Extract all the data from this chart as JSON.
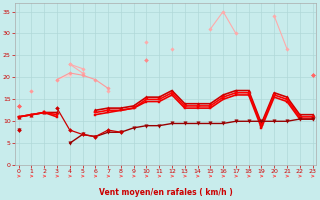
{
  "xlabel": "Vent moyen/en rafales ( km/h )",
  "bg_color": "#c8ecec",
  "grid_color": "#b0d8d8",
  "xlim": [
    -0.3,
    23.3
  ],
  "ylim": [
    0,
    37
  ],
  "yticks": [
    0,
    5,
    10,
    15,
    20,
    25,
    30,
    35
  ],
  "x_ticks": [
    0,
    1,
    2,
    3,
    4,
    5,
    6,
    7,
    8,
    9,
    10,
    11,
    12,
    13,
    14,
    15,
    16,
    17,
    18,
    19,
    20,
    21,
    22,
    23
  ],
  "series": [
    {
      "color": "#ffaaaa",
      "linewidth": 0.8,
      "marker": "D",
      "markersize": 1.8,
      "data": [
        13.5,
        null,
        null,
        null,
        23,
        21,
        null,
        17,
        null,
        null,
        28,
        null,
        26.5,
        null,
        null,
        31,
        35,
        30,
        null,
        null,
        34,
        26.5,
        null,
        20.5
      ]
    },
    {
      "color": "#ffbbbb",
      "linewidth": 0.8,
      "marker": "D",
      "markersize": 1.8,
      "data": [
        13.5,
        null,
        null,
        null,
        null,
        null,
        null,
        null,
        null,
        null,
        null,
        null,
        null,
        null,
        null,
        null,
        null,
        null,
        null,
        null,
        null,
        null,
        null,
        20.5
      ]
    },
    {
      "color": "#ffcccc",
      "linewidth": 0.8,
      "marker": "D",
      "markersize": 1.8,
      "data": [
        null,
        17,
        null,
        19.5,
        20.5,
        null,
        null,
        null,
        null,
        null,
        null,
        null,
        null,
        null,
        null,
        null,
        null,
        null,
        null,
        null,
        null,
        null,
        null,
        null
      ]
    },
    {
      "color": "#ff9999",
      "linewidth": 0.8,
      "marker": "D",
      "markersize": 1.8,
      "data": [
        null,
        17,
        null,
        19.5,
        21,
        20.5,
        19.5,
        17.5,
        null,
        null,
        null,
        null,
        null,
        null,
        null,
        null,
        null,
        null,
        null,
        null,
        null,
        null,
        null,
        null
      ]
    },
    {
      "color": "#ffaaaa",
      "linewidth": 0.8,
      "marker": "D",
      "markersize": 1.8,
      "data": [
        null,
        null,
        null,
        null,
        23,
        22,
        null,
        null,
        null,
        null,
        null,
        null,
        null,
        null,
        null,
        null,
        null,
        null,
        null,
        null,
        null,
        null,
        null,
        null
      ]
    },
    {
      "color": "#ff8888",
      "linewidth": 0.9,
      "marker": "D",
      "markersize": 2.0,
      "data": [
        13.5,
        null,
        null,
        null,
        null,
        null,
        null,
        null,
        null,
        null,
        24,
        null,
        null,
        null,
        null,
        null,
        null,
        null,
        null,
        null,
        null,
        null,
        null,
        20.5
      ]
    },
    {
      "color": "#ff6666",
      "linewidth": 0.9,
      "marker": "D",
      "markersize": 2.0,
      "data": [
        13.5,
        null,
        null,
        null,
        null,
        null,
        null,
        null,
        null,
        null,
        null,
        null,
        null,
        null,
        null,
        null,
        null,
        null,
        null,
        null,
        null,
        null,
        null,
        20.5
      ]
    },
    {
      "color": "#cc0000",
      "linewidth": 1.2,
      "marker": "^",
      "markersize": 2.5,
      "data": [
        11,
        11.5,
        12,
        12,
        null,
        null,
        12.5,
        13,
        13,
        13.5,
        15.5,
        15.5,
        17,
        14,
        14,
        14,
        16,
        17,
        17,
        9.5,
        16.5,
        15.5,
        11.5,
        11.5
      ]
    },
    {
      "color": "#ff0000",
      "linewidth": 1.2,
      "marker": "s",
      "markersize": 2.0,
      "data": [
        11,
        11.5,
        12,
        11.5,
        null,
        null,
        12,
        12.5,
        12.5,
        13,
        15,
        15,
        16.5,
        13.5,
        13.5,
        13.5,
        15.5,
        16.5,
        16.5,
        9,
        16,
        15,
        11,
        11
      ]
    },
    {
      "color": "#ee0000",
      "linewidth": 1.2,
      "marker": "s",
      "markersize": 2.0,
      "data": [
        11,
        11.5,
        12,
        11,
        null,
        null,
        11.5,
        12,
        12.5,
        13,
        14.5,
        14.5,
        16,
        13,
        13,
        13,
        15,
        16,
        16,
        8.5,
        15.5,
        14.5,
        10.5,
        10.5
      ]
    },
    {
      "color": "#990000",
      "linewidth": 1.0,
      "marker": "v",
      "markersize": 2.5,
      "data": [
        8,
        null,
        null,
        null,
        5,
        7,
        6.5,
        7.5,
        7.5,
        8.5,
        9,
        9,
        9.5,
        9.5,
        9.5,
        9.5,
        9.5,
        10,
        10,
        10,
        10,
        10,
        10.5,
        10.5
      ]
    },
    {
      "color": "#cc0000",
      "linewidth": 0.9,
      "marker": "D",
      "markersize": 2.0,
      "data": [
        8,
        null,
        null,
        13,
        8,
        7,
        6.5,
        8,
        7.5,
        null,
        null,
        null,
        null,
        null,
        null,
        null,
        null,
        null,
        null,
        null,
        null,
        null,
        null,
        null
      ]
    }
  ],
  "arrow_directions": [
    0,
    0,
    315,
    270,
    0,
    0,
    0,
    0,
    0,
    0,
    0,
    0,
    0,
    0,
    0,
    0,
    0,
    0,
    0,
    0,
    315,
    270,
    315,
    270
  ],
  "arrow_color": "#ff4444"
}
